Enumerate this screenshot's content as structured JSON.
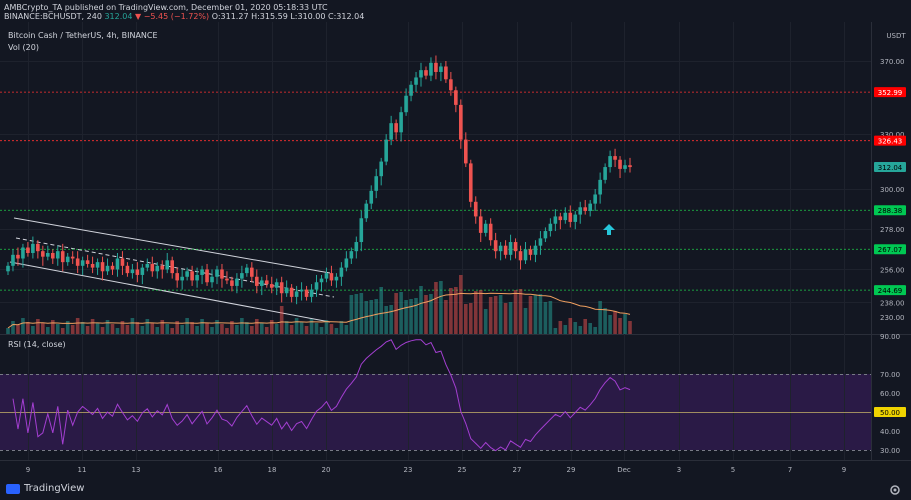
{
  "header": {
    "line1": "AMBCrypto_TA published on TradingView.com, December 01, 2020 05:18:33 UTC",
    "symbol": "BINANCE:BCHUSDT, 240",
    "price": "312.04",
    "change": "▼ −5.45 (−1.72%)",
    "ohlc": "O:311.27 H:315.59 L:310.00 C:312.04"
  },
  "legend": {
    "title": "Bitcoin Cash / TetherUS, 4h, BINANCE",
    "vol": "Vol (20)"
  },
  "rsi_legend": "RSI (14, close)",
  "axis_currency": "USDT",
  "price_badges": [
    {
      "value": "352.99",
      "color": "#ff0000"
    },
    {
      "value": "326.43",
      "color": "#ff0000"
    },
    {
      "value": "312.04",
      "color": "#26a69a"
    },
    {
      "value": "288.38",
      "color": "#00c853"
    },
    {
      "value": "267.07",
      "color": "#00c853"
    },
    {
      "value": "244.69",
      "color": "#00c853"
    }
  ],
  "price_ticks": [
    "370.00",
    "330.00",
    "300.00",
    "278.00",
    "256.00",
    "238.00",
    "230.00"
  ],
  "rsi_ticks": [
    "90.00",
    "70.00",
    "60.00",
    "40.00",
    "30.00"
  ],
  "rsi_badge": "50.00",
  "x_labels": [
    "9",
    "11",
    "13",
    "16",
    "18",
    "20",
    "23",
    "25",
    "27",
    "29",
    "Dec",
    "3",
    "5",
    "7",
    "9"
  ],
  "footer": {
    "brand": "TradingView"
  },
  "icons": [
    "tradingview-logo-icon",
    "settings-gear-icon",
    "arrow-up-icon"
  ],
  "chart_data": {
    "type": "candlestick",
    "title": "Bitcoin Cash / TetherUS, 4h, BINANCE",
    "ylabel": "USDT",
    "ylim": [
      222,
      382
    ],
    "horizontal_levels": [
      352.99,
      326.43,
      288.38,
      267.07,
      244.69
    ],
    "last_price": 312.04,
    "close_series": [
      258,
      264,
      262,
      268,
      265,
      270,
      266,
      263,
      265,
      262,
      266,
      260,
      263,
      262,
      258,
      261,
      259,
      257,
      260,
      255,
      258,
      256,
      262,
      258,
      254,
      256,
      253,
      257,
      259,
      255,
      258,
      256,
      261,
      254,
      250,
      252,
      255,
      250,
      253,
      256,
      249,
      252,
      256,
      251,
      250,
      247,
      251,
      254,
      257,
      252,
      247,
      250,
      248,
      246,
      249,
      243,
      246,
      241,
      244,
      245,
      241,
      245,
      249,
      251,
      254,
      250,
      252,
      257,
      262,
      266,
      271,
      284,
      292,
      299,
      307,
      315,
      327,
      336,
      331,
      342,
      351,
      357,
      361,
      365,
      362,
      369,
      364,
      367,
      360,
      354,
      346,
      327,
      314,
      293,
      285,
      276,
      281,
      272,
      266,
      269,
      264,
      271,
      266,
      261,
      267,
      264,
      269,
      273,
      277,
      281,
      285,
      283,
      287,
      282,
      286,
      290,
      288,
      292,
      297,
      305,
      312,
      318,
      316,
      311,
      313,
      312
    ]
  }
}
